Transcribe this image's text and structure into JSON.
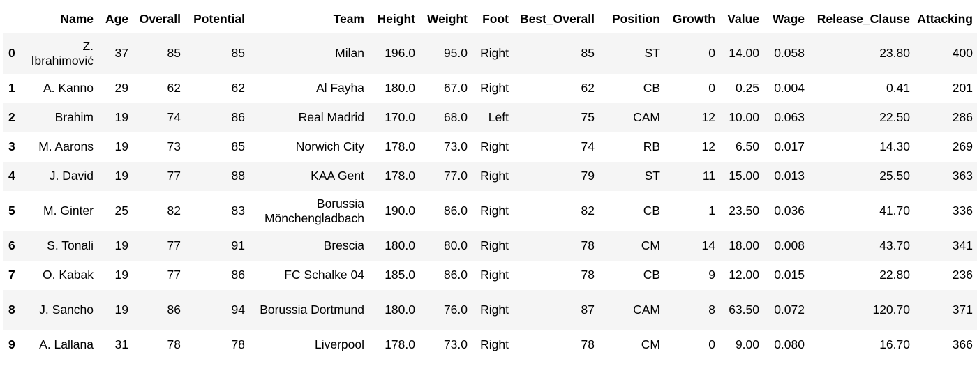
{
  "columns": {
    "index": "",
    "Name": "Name",
    "Age": "Age",
    "Overall": "Overall",
    "Potential": "Potential",
    "Team": "Team",
    "Height": "Height",
    "Weight": "Weight",
    "Foot": "Foot",
    "Best_Overall": "Best_Overall",
    "Position": "Position",
    "Growth": "Growth",
    "Value": "Value",
    "Wage": "Wage",
    "Release_Clause": "Release_Clause",
    "Attacking": "Attacking"
  },
  "rows": [
    {
      "idx": "0",
      "Name": "Z. Ibrahimović",
      "Age": "37",
      "Overall": "85",
      "Potential": "85",
      "Team": "Milan",
      "Height": "196.0",
      "Weight": "95.0",
      "Foot": "Right",
      "Best_Overall": "85",
      "Position": "ST",
      "Growth": "0",
      "Value": "14.00",
      "Wage": "0.058",
      "Release_Clause": "23.80",
      "Attacking": "400"
    },
    {
      "idx": "1",
      "Name": "A. Kanno",
      "Age": "29",
      "Overall": "62",
      "Potential": "62",
      "Team": "Al Fayha",
      "Height": "180.0",
      "Weight": "67.0",
      "Foot": "Right",
      "Best_Overall": "62",
      "Position": "CB",
      "Growth": "0",
      "Value": "0.25",
      "Wage": "0.004",
      "Release_Clause": "0.41",
      "Attacking": "201"
    },
    {
      "idx": "2",
      "Name": "Brahim",
      "Age": "19",
      "Overall": "74",
      "Potential": "86",
      "Team": "Real Madrid",
      "Height": "170.0",
      "Weight": "68.0",
      "Foot": "Left",
      "Best_Overall": "75",
      "Position": "CAM",
      "Growth": "12",
      "Value": "10.00",
      "Wage": "0.063",
      "Release_Clause": "22.50",
      "Attacking": "286"
    },
    {
      "idx": "3",
      "Name": "M. Aarons",
      "Age": "19",
      "Overall": "73",
      "Potential": "85",
      "Team": "Norwich City",
      "Height": "178.0",
      "Weight": "73.0",
      "Foot": "Right",
      "Best_Overall": "74",
      "Position": "RB",
      "Growth": "12",
      "Value": "6.50",
      "Wage": "0.017",
      "Release_Clause": "14.30",
      "Attacking": "269"
    },
    {
      "idx": "4",
      "Name": "J. David",
      "Age": "19",
      "Overall": "77",
      "Potential": "88",
      "Team": "KAA Gent",
      "Height": "178.0",
      "Weight": "77.0",
      "Foot": "Right",
      "Best_Overall": "79",
      "Position": "ST",
      "Growth": "11",
      "Value": "15.00",
      "Wage": "0.013",
      "Release_Clause": "25.50",
      "Attacking": "363"
    },
    {
      "idx": "5",
      "Name": "M. Ginter",
      "Age": "25",
      "Overall": "82",
      "Potential": "83",
      "Team": "Borussia Mönchengladbach",
      "Height": "190.0",
      "Weight": "86.0",
      "Foot": "Right",
      "Best_Overall": "82",
      "Position": "CB",
      "Growth": "1",
      "Value": "23.50",
      "Wage": "0.036",
      "Release_Clause": "41.70",
      "Attacking": "336"
    },
    {
      "idx": "6",
      "Name": "S. Tonali",
      "Age": "19",
      "Overall": "77",
      "Potential": "91",
      "Team": "Brescia",
      "Height": "180.0",
      "Weight": "80.0",
      "Foot": "Right",
      "Best_Overall": "78",
      "Position": "CM",
      "Growth": "14",
      "Value": "18.00",
      "Wage": "0.008",
      "Release_Clause": "43.70",
      "Attacking": "341"
    },
    {
      "idx": "7",
      "Name": "O. Kabak",
      "Age": "19",
      "Overall": "77",
      "Potential": "86",
      "Team": "FC Schalke 04",
      "Height": "185.0",
      "Weight": "86.0",
      "Foot": "Right",
      "Best_Overall": "78",
      "Position": "CB",
      "Growth": "9",
      "Value": "12.00",
      "Wage": "0.015",
      "Release_Clause": "22.80",
      "Attacking": "236"
    },
    {
      "idx": "8",
      "Name": "J. Sancho",
      "Age": "19",
      "Overall": "86",
      "Potential": "94",
      "Team": "Borussia Dortmund",
      "Height": "180.0",
      "Weight": "76.0",
      "Foot": "Right",
      "Best_Overall": "87",
      "Position": "CAM",
      "Growth": "8",
      "Value": "63.50",
      "Wage": "0.072",
      "Release_Clause": "120.70",
      "Attacking": "371"
    },
    {
      "idx": "9",
      "Name": "A. Lallana",
      "Age": "31",
      "Overall": "78",
      "Potential": "78",
      "Team": "Liverpool",
      "Height": "178.0",
      "Weight": "73.0",
      "Foot": "Right",
      "Best_Overall": "78",
      "Position": "CM",
      "Growth": "0",
      "Value": "9.00",
      "Wage": "0.080",
      "Release_Clause": "16.70",
      "Attacking": "366"
    }
  ]
}
